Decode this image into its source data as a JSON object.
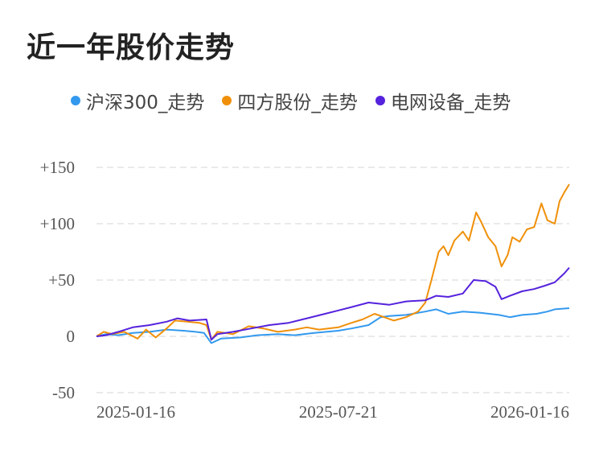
{
  "title": "近一年股价走势",
  "legend": [
    {
      "label": "沪深300_走势",
      "color": "#3399ee"
    },
    {
      "label": "四方股份_走势",
      "color": "#f0900a"
    },
    {
      "label": "电网设备_走势",
      "color": "#5522dd"
    }
  ],
  "chart_data": {
    "type": "line",
    "title": "近一年股价走势",
    "xlabel": "",
    "ylabel": "",
    "ylim": [
      -50,
      150
    ],
    "yticks": [
      150,
      100,
      50,
      0,
      -50
    ],
    "ytick_labels": [
      "+150",
      "+100",
      "+50",
      "0",
      "-50"
    ],
    "xlim": [
      "2025-01-02",
      "2026-01-28"
    ],
    "xticks": [
      "2025-01-16",
      "2025-07-21",
      "2026-01-16"
    ],
    "grid": true,
    "legend_position": "top",
    "series": [
      {
        "name": "沪深300_走势",
        "color": "#3399ee",
        "points": [
          [
            "2025-01-02",
            0
          ],
          [
            "2025-01-10",
            2
          ],
          [
            "2025-01-20",
            1
          ],
          [
            "2025-02-01",
            3
          ],
          [
            "2025-02-15",
            4
          ],
          [
            "2025-03-01",
            6
          ],
          [
            "2025-03-15",
            5
          ],
          [
            "2025-03-25",
            4
          ],
          [
            "2025-04-01",
            3
          ],
          [
            "2025-04-07",
            -6
          ],
          [
            "2025-04-15",
            -2
          ],
          [
            "2025-05-01",
            -1
          ],
          [
            "2025-05-15",
            1
          ],
          [
            "2025-06-01",
            2
          ],
          [
            "2025-06-15",
            1
          ],
          [
            "2025-07-01",
            3
          ],
          [
            "2025-07-21",
            5
          ],
          [
            "2025-08-01",
            7
          ],
          [
            "2025-08-15",
            10
          ],
          [
            "2025-08-25",
            17
          ],
          [
            "2025-09-01",
            18
          ],
          [
            "2025-09-15",
            19
          ],
          [
            "2025-10-01",
            22
          ],
          [
            "2025-10-10",
            24
          ],
          [
            "2025-10-20",
            20
          ],
          [
            "2025-11-01",
            22
          ],
          [
            "2025-11-15",
            21
          ],
          [
            "2025-12-01",
            19
          ],
          [
            "2025-12-10",
            17
          ],
          [
            "2025-12-20",
            19
          ],
          [
            "2026-01-01",
            20
          ],
          [
            "2026-01-10",
            22
          ],
          [
            "2026-01-16",
            24
          ],
          [
            "2026-01-28",
            25
          ]
        ]
      },
      {
        "name": "四方股份_走势",
        "color": "#f0900a",
        "points": [
          [
            "2025-01-02",
            0
          ],
          [
            "2025-01-08",
            4
          ],
          [
            "2025-01-15",
            2
          ],
          [
            "2025-01-25",
            4
          ],
          [
            "2025-02-05",
            -2
          ],
          [
            "2025-02-12",
            6
          ],
          [
            "2025-02-20",
            -1
          ],
          [
            "2025-03-01",
            7
          ],
          [
            "2025-03-08",
            14
          ],
          [
            "2025-03-18",
            13
          ],
          [
            "2025-03-28",
            12
          ],
          [
            "2025-04-03",
            10
          ],
          [
            "2025-04-07",
            -3
          ],
          [
            "2025-04-12",
            4
          ],
          [
            "2025-04-25",
            2
          ],
          [
            "2025-05-08",
            9
          ],
          [
            "2025-05-20",
            7
          ],
          [
            "2025-06-01",
            4
          ],
          [
            "2025-06-15",
            6
          ],
          [
            "2025-06-25",
            8
          ],
          [
            "2025-07-05",
            6
          ],
          [
            "2025-07-21",
            8
          ],
          [
            "2025-08-01",
            12
          ],
          [
            "2025-08-10",
            15
          ],
          [
            "2025-08-20",
            20
          ],
          [
            "2025-08-28",
            17
          ],
          [
            "2025-09-05",
            14
          ],
          [
            "2025-09-15",
            17
          ],
          [
            "2025-09-25",
            22
          ],
          [
            "2025-10-01",
            30
          ],
          [
            "2025-10-06",
            50
          ],
          [
            "2025-10-12",
            75
          ],
          [
            "2025-10-16",
            80
          ],
          [
            "2025-10-20",
            72
          ],
          [
            "2025-10-25",
            85
          ],
          [
            "2025-11-01",
            93
          ],
          [
            "2025-11-06",
            85
          ],
          [
            "2025-11-12",
            110
          ],
          [
            "2025-11-16",
            102
          ],
          [
            "2025-11-22",
            88
          ],
          [
            "2025-11-28",
            80
          ],
          [
            "2025-12-03",
            62
          ],
          [
            "2025-12-08",
            72
          ],
          [
            "2025-12-12",
            88
          ],
          [
            "2025-12-18",
            84
          ],
          [
            "2025-12-24",
            95
          ],
          [
            "2025-12-30",
            97
          ],
          [
            "2026-01-05",
            118
          ],
          [
            "2026-01-10",
            103
          ],
          [
            "2026-01-16",
            100
          ],
          [
            "2026-01-20",
            120
          ],
          [
            "2026-01-24",
            128
          ],
          [
            "2026-01-28",
            135
          ]
        ]
      },
      {
        "name": "电网设备_走势",
        "color": "#5522dd",
        "points": [
          [
            "2025-01-02",
            0
          ],
          [
            "2025-01-10",
            1
          ],
          [
            "2025-01-20",
            4
          ],
          [
            "2025-02-01",
            8
          ],
          [
            "2025-02-15",
            10
          ],
          [
            "2025-03-01",
            13
          ],
          [
            "2025-03-10",
            16
          ],
          [
            "2025-03-20",
            14
          ],
          [
            "2025-04-03",
            15
          ],
          [
            "2025-04-07",
            -3
          ],
          [
            "2025-04-12",
            2
          ],
          [
            "2025-04-25",
            4
          ],
          [
            "2025-05-10",
            7
          ],
          [
            "2025-05-25",
            10
          ],
          [
            "2025-06-10",
            12
          ],
          [
            "2025-06-25",
            16
          ],
          [
            "2025-07-10",
            20
          ],
          [
            "2025-07-21",
            23
          ],
          [
            "2025-08-01",
            26
          ],
          [
            "2025-08-15",
            30
          ],
          [
            "2025-09-01",
            28
          ],
          [
            "2025-09-15",
            31
          ],
          [
            "2025-10-01",
            32
          ],
          [
            "2025-10-10",
            36
          ],
          [
            "2025-10-20",
            35
          ],
          [
            "2025-11-01",
            38
          ],
          [
            "2025-11-10",
            50
          ],
          [
            "2025-11-20",
            49
          ],
          [
            "2025-11-28",
            44
          ],
          [
            "2025-12-03",
            33
          ],
          [
            "2025-12-10",
            36
          ],
          [
            "2025-12-20",
            40
          ],
          [
            "2025-12-30",
            42
          ],
          [
            "2026-01-08",
            45
          ],
          [
            "2026-01-16",
            48
          ],
          [
            "2026-01-24",
            56
          ],
          [
            "2026-01-28",
            61
          ]
        ]
      }
    ]
  }
}
